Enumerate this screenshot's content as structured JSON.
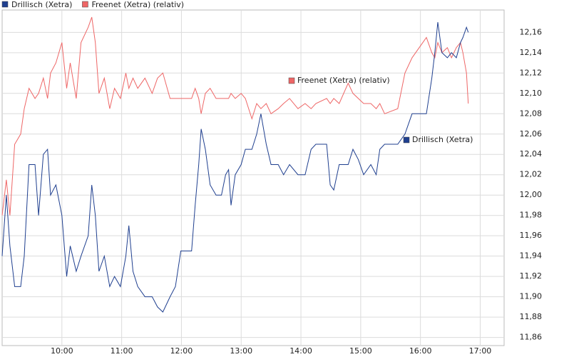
{
  "chart_data": {
    "type": "line",
    "x": [
      9.0,
      9.07,
      9.13,
      9.21,
      9.31,
      9.37,
      9.45,
      9.55,
      9.61,
      9.69,
      9.76,
      9.81,
      9.9,
      10.0,
      10.08,
      10.14,
      10.24,
      10.32,
      10.44,
      10.5,
      10.56,
      10.62,
      10.71,
      10.8,
      10.88,
      10.98,
      11.07,
      11.12,
      11.19,
      11.27,
      11.39,
      11.51,
      11.6,
      11.69,
      11.81,
      11.9,
      11.99,
      12.17,
      12.23,
      12.29,
      12.33,
      12.4,
      12.48,
      12.58,
      12.67,
      12.74,
      12.79,
      12.83,
      12.9,
      13.0,
      13.07,
      13.18,
      13.26,
      13.33,
      13.42,
      13.5,
      13.62,
      13.71,
      13.81,
      13.95,
      14.07,
      14.17,
      14.25,
      14.43,
      14.49,
      14.55,
      14.64,
      14.79,
      14.87,
      14.96,
      15.05,
      15.17,
      15.26,
      15.32,
      15.4,
      15.62,
      15.74,
      15.86,
      16.1,
      16.19,
      16.24,
      16.29,
      16.36,
      16.45,
      16.52,
      16.6,
      16.67,
      16.71,
      16.77,
      16.8
    ],
    "series": [
      {
        "name": "Drillisch (Xetra)",
        "color": "#1f3f8f",
        "values": [
          11.94,
          12.0,
          11.95,
          11.91,
          11.91,
          11.94,
          12.03,
          12.03,
          11.98,
          12.04,
          12.045,
          12.0,
          12.01,
          11.98,
          11.92,
          11.95,
          11.925,
          11.94,
          11.96,
          12.01,
          11.98,
          11.925,
          11.94,
          11.91,
          11.92,
          11.91,
          11.94,
          11.97,
          11.925,
          11.91,
          11.9,
          11.9,
          11.89,
          11.885,
          11.9,
          11.91,
          11.945,
          11.945,
          11.99,
          12.03,
          12.065,
          12.045,
          12.01,
          12.0,
          12.0,
          12.02,
          12.025,
          11.99,
          12.02,
          12.03,
          12.045,
          12.045,
          12.06,
          12.08,
          12.05,
          12.03,
          12.03,
          12.02,
          12.03,
          12.02,
          12.02,
          12.045,
          12.05,
          12.05,
          12.01,
          12.005,
          12.03,
          12.03,
          12.045,
          12.035,
          12.02,
          12.03,
          12.02,
          12.045,
          12.05,
          12.05,
          12.06,
          12.08,
          12.08,
          12.115,
          12.14,
          12.17,
          12.14,
          12.135,
          12.14,
          12.135,
          12.15,
          12.155,
          12.165,
          12.16
        ]
      },
      {
        "name": "Freenet (Xetra) (relativ)",
        "color": "#ee6666",
        "values": [
          11.98,
          12.015,
          11.98,
          12.05,
          12.06,
          12.085,
          12.105,
          12.095,
          12.1,
          12.115,
          12.095,
          12.12,
          12.13,
          12.15,
          12.105,
          12.13,
          12.095,
          12.15,
          12.165,
          12.175,
          12.15,
          12.1,
          12.115,
          12.085,
          12.105,
          12.095,
          12.12,
          12.105,
          12.115,
          12.105,
          12.115,
          12.1,
          12.115,
          12.12,
          12.095,
          12.095,
          12.095,
          12.095,
          12.105,
          12.095,
          12.08,
          12.1,
          12.105,
          12.095,
          12.095,
          12.095,
          12.095,
          12.1,
          12.095,
          12.1,
          12.095,
          12.075,
          12.09,
          12.085,
          12.09,
          12.08,
          12.085,
          12.09,
          12.095,
          12.085,
          12.09,
          12.085,
          12.09,
          12.095,
          12.09,
          12.095,
          12.09,
          12.11,
          12.1,
          12.095,
          12.09,
          12.09,
          12.085,
          12.09,
          12.08,
          12.085,
          12.12,
          12.135,
          12.155,
          12.14,
          12.135,
          12.15,
          12.14,
          12.145,
          12.135,
          12.145,
          12.15,
          12.14,
          12.12,
          12.09
        ]
      }
    ],
    "xlim": [
      9.0,
      17.4
    ],
    "ylim": [
      11.852,
      12.182
    ],
    "xticks": [
      {
        "value": 10,
        "label": "10:00"
      },
      {
        "value": 11,
        "label": "11:00"
      },
      {
        "value": 12,
        "label": "12:00"
      },
      {
        "value": 13,
        "label": "13:00"
      },
      {
        "value": 14,
        "label": "14:00"
      },
      {
        "value": 15,
        "label": "15:00"
      },
      {
        "value": 16,
        "label": "16:00"
      },
      {
        "value": 17,
        "label": "17:00"
      }
    ],
    "yticks": [
      {
        "value": 11.86,
        "label": "11,86"
      },
      {
        "value": 11.88,
        "label": "11,88"
      },
      {
        "value": 11.9,
        "label": "11,90"
      },
      {
        "value": 11.92,
        "label": "11,92"
      },
      {
        "value": 11.94,
        "label": "11,94"
      },
      {
        "value": 11.96,
        "label": "11,96"
      },
      {
        "value": 11.98,
        "label": "11,98"
      },
      {
        "value": 12.0,
        "label": "12,00"
      },
      {
        "value": 12.02,
        "label": "12,02"
      },
      {
        "value": 12.04,
        "label": "12,04"
      },
      {
        "value": 12.06,
        "label": "12,06"
      },
      {
        "value": 12.08,
        "label": "12,08"
      },
      {
        "value": 12.1,
        "label": "12,10"
      },
      {
        "value": 12.12,
        "label": "12,12"
      },
      {
        "value": 12.14,
        "label": "12,14"
      },
      {
        "value": 12.16,
        "label": "12,16"
      }
    ],
    "grid": true
  }
}
